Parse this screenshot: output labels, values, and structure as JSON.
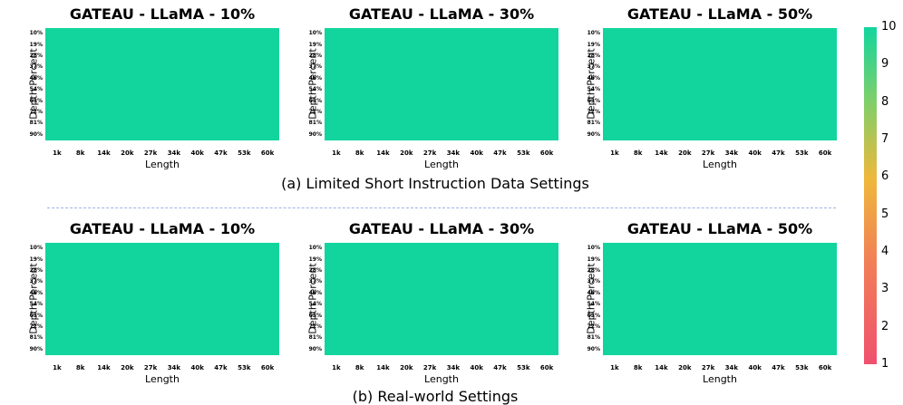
{
  "panels": [
    {
      "title": "GATEAU - LLaMA - 10%",
      "xlabel": "Length",
      "ylabel": "Depth Percent"
    },
    {
      "title": "GATEAU - LLaMA - 30%",
      "xlabel": "Length",
      "ylabel": "Depth Percent"
    },
    {
      "title": "GATEAU - LLaMA - 50%",
      "xlabel": "Length",
      "ylabel": "Depth Percent"
    },
    {
      "title": "GATEAU - LLaMA - 10%",
      "xlabel": "Length",
      "ylabel": "Depth Percent"
    },
    {
      "title": "GATEAU - LLaMA - 30%",
      "xlabel": "Length",
      "ylabel": "Depth Percent"
    },
    {
      "title": "GATEAU - LLaMA - 50%",
      "xlabel": "Length",
      "ylabel": "Depth Percent"
    }
  ],
  "captions": {
    "top": "(a) Limited Short Instruction Data Settings",
    "bottom": "(b) Real-world Settings"
  },
  "colorbar": {
    "ticks": [
      "1",
      "2",
      "3",
      "4",
      "5",
      "6",
      "7",
      "8",
      "9",
      "10"
    ],
    "colors": {
      "low": "#f0516e",
      "mid": "#efb83b",
      "high": "#12d59e"
    }
  },
  "chart_data": [
    {
      "type": "heatmap",
      "title": "GATEAU - LLaMA - 10%",
      "xlabel": "Length",
      "ylabel": "Depth Percent",
      "x": [
        "1k",
        "8k",
        "14k",
        "20k",
        "27k",
        "34k",
        "40k",
        "47k",
        "53k",
        "60k"
      ],
      "y": [
        "10%",
        "19%",
        "28%",
        "37%",
        "46%",
        "54%",
        "63%",
        "72%",
        "81%",
        "90%"
      ],
      "values": "all cells = 10",
      "vmin": 1,
      "vmax": 10
    },
    {
      "type": "heatmap",
      "title": "GATEAU - LLaMA - 30%",
      "xlabel": "Length",
      "ylabel": "Depth Percent",
      "x": [
        "1k",
        "8k",
        "14k",
        "20k",
        "27k",
        "34k",
        "40k",
        "47k",
        "53k",
        "60k"
      ],
      "y": [
        "10%",
        "19%",
        "28%",
        "37%",
        "46%",
        "54%",
        "63%",
        "72%",
        "81%",
        "90%"
      ],
      "values": "all cells = 10",
      "vmin": 1,
      "vmax": 10
    },
    {
      "type": "heatmap",
      "title": "GATEAU - LLaMA - 50%",
      "xlabel": "Length",
      "ylabel": "Depth Percent",
      "x": [
        "1k",
        "8k",
        "14k",
        "20k",
        "27k",
        "34k",
        "40k",
        "47k",
        "53k",
        "60k"
      ],
      "y": [
        "10%",
        "19%",
        "28%",
        "37%",
        "46%",
        "54%",
        "63%",
        "72%",
        "81%",
        "90%"
      ],
      "values": "all cells = 10",
      "vmin": 1,
      "vmax": 10
    },
    {
      "type": "heatmap",
      "title": "GATEAU - LLaMA - 10%",
      "xlabel": "Length",
      "ylabel": "Depth Percent",
      "x": [
        "1k",
        "8k",
        "14k",
        "20k",
        "27k",
        "34k",
        "40k",
        "47k",
        "53k",
        "60k"
      ],
      "y": [
        "10%",
        "19%",
        "28%",
        "37%",
        "46%",
        "54%",
        "63%",
        "72%",
        "81%",
        "90%"
      ],
      "values": "all cells = 10",
      "vmin": 1,
      "vmax": 10
    },
    {
      "type": "heatmap",
      "title": "GATEAU - LLaMA - 30%",
      "xlabel": "Length",
      "ylabel": "Depth Percent",
      "x": [
        "1k",
        "8k",
        "14k",
        "20k",
        "27k",
        "34k",
        "40k",
        "47k",
        "53k",
        "60k"
      ],
      "y": [
        "10%",
        "19%",
        "28%",
        "37%",
        "46%",
        "54%",
        "63%",
        "72%",
        "81%",
        "90%"
      ],
      "values": "all cells = 10",
      "vmin": 1,
      "vmax": 10
    },
    {
      "type": "heatmap",
      "title": "GATEAU - LLaMA - 50%",
      "xlabel": "Length",
      "ylabel": "Depth Percent",
      "x": [
        "1k",
        "8k",
        "14k",
        "20k",
        "27k",
        "34k",
        "40k",
        "47k",
        "53k",
        "60k"
      ],
      "y": [
        "10%",
        "19%",
        "28%",
        "37%",
        "46%",
        "54%",
        "63%",
        "72%",
        "81%",
        "90%"
      ],
      "values": "all cells = 10",
      "vmin": 1,
      "vmax": 10
    }
  ]
}
